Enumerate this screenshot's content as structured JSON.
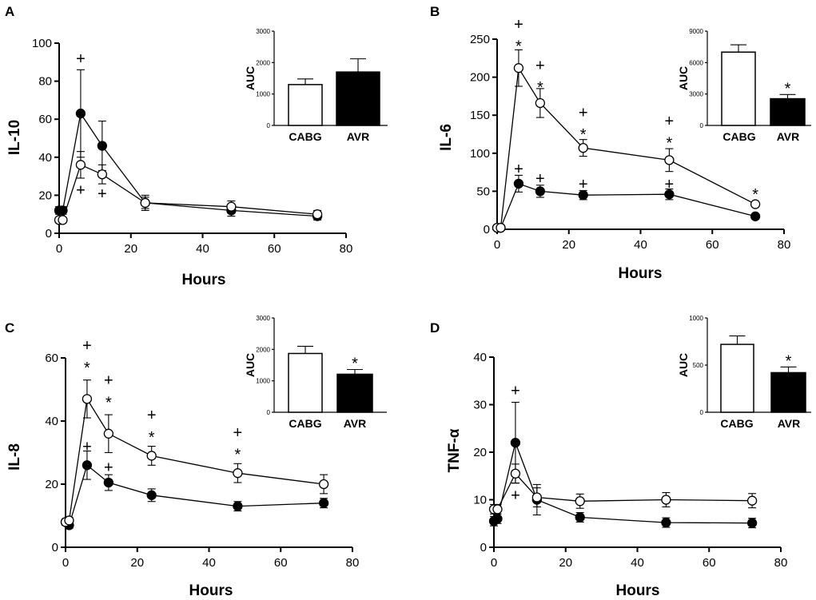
{
  "chart_data": [
    {
      "panel": "A",
      "type": "line",
      "xlabel": "Hours",
      "ylabel": "IL-10",
      "xlim": [
        0,
        80
      ],
      "ylim": [
        0,
        100
      ],
      "xticks": [
        0,
        20,
        40,
        60,
        80
      ],
      "yticks": [
        0,
        20,
        40,
        60,
        80,
        100
      ],
      "x": [
        0,
        1,
        6,
        12,
        24,
        48,
        72
      ],
      "series": [
        {
          "name": "CABG",
          "marker": "open",
          "values": [
            7,
            7,
            36,
            31,
            16,
            14,
            10
          ],
          "errors": [
            1,
            1,
            7,
            5,
            3,
            3,
            2
          ]
        },
        {
          "name": "AVR",
          "marker": "filled",
          "values": [
            12,
            12,
            63,
            46,
            16,
            12,
            9
          ],
          "errors": [
            2,
            2,
            23,
            13,
            4,
            3,
            2
          ]
        }
      ],
      "annotations": [
        {
          "x": 6,
          "y": 92,
          "text": "+"
        },
        {
          "x": 6,
          "y": 23,
          "text": "+"
        },
        {
          "x": 12,
          "y": 21,
          "text": "+"
        }
      ],
      "inset": {
        "ylabel": "AUC",
        "ylim": [
          0,
          3000
        ],
        "yticks": [
          0,
          1000,
          2000,
          3000
        ],
        "categories": [
          "CABG",
          "AVR"
        ],
        "values": [
          1300,
          1700
        ],
        "errors": [
          180,
          420
        ],
        "fills": [
          "#ffffff",
          "#000000"
        ],
        "stars": [
          "",
          ""
        ]
      }
    },
    {
      "panel": "B",
      "type": "line",
      "xlabel": "Hours",
      "ylabel": "IL-6",
      "xlim": [
        0,
        80
      ],
      "ylim": [
        0,
        250
      ],
      "xticks": [
        0,
        20,
        40,
        60,
        80
      ],
      "yticks": [
        0,
        50,
        100,
        150,
        200,
        250
      ],
      "x": [
        0,
        1,
        6,
        12,
        24,
        48,
        72
      ],
      "series": [
        {
          "name": "CABG",
          "marker": "open",
          "values": [
            2,
            2,
            212,
            166,
            107,
            91,
            33
          ],
          "errors": [
            1,
            1,
            24,
            19,
            11,
            15,
            3
          ]
        },
        {
          "name": "AVR",
          "marker": "filled",
          "values": [
            2,
            2,
            60,
            50,
            45,
            46,
            17
          ],
          "errors": [
            1,
            1,
            11,
            8,
            6,
            7,
            2
          ]
        }
      ],
      "annotations": [
        {
          "x": 6,
          "y": 270,
          "text": "+"
        },
        {
          "x": 6,
          "y": 241,
          "text": "*"
        },
        {
          "x": 12,
          "y": 216,
          "text": "+"
        },
        {
          "x": 12,
          "y": 187,
          "text": "*"
        },
        {
          "x": 24,
          "y": 154,
          "text": "+"
        },
        {
          "x": 24,
          "y": 125,
          "text": "*"
        },
        {
          "x": 48,
          "y": 143,
          "text": "+"
        },
        {
          "x": 48,
          "y": 114,
          "text": "*"
        },
        {
          "x": 72,
          "y": 46,
          "text": "*"
        },
        {
          "x": 6,
          "y": 80,
          "text": "+"
        },
        {
          "x": 12,
          "y": 67,
          "text": "+"
        },
        {
          "x": 24,
          "y": 60,
          "text": "+"
        },
        {
          "x": 48,
          "y": 60,
          "text": "+"
        }
      ],
      "inset": {
        "ylabel": "AUC",
        "ylim": [
          0,
          9000
        ],
        "yticks": [
          0,
          3000,
          6000,
          9000
        ],
        "categories": [
          "CABG",
          "AVR"
        ],
        "values": [
          7000,
          2550
        ],
        "errors": [
          700,
          400
        ],
        "fills": [
          "#ffffff",
          "#000000"
        ],
        "stars": [
          "",
          "*"
        ]
      }
    },
    {
      "panel": "C",
      "type": "line",
      "xlabel": "Hours",
      "ylabel": "IL-8",
      "xlim": [
        0,
        80
      ],
      "ylim": [
        0,
        60
      ],
      "xticks": [
        0,
        20,
        40,
        60,
        80
      ],
      "yticks": [
        0,
        20,
        40,
        60
      ],
      "x": [
        0,
        1,
        6,
        12,
        24,
        48,
        72
      ],
      "series": [
        {
          "name": "CABG",
          "marker": "open",
          "values": [
            8,
            8.5,
            47,
            36,
            29,
            23.5,
            20
          ],
          "errors": [
            1,
            1,
            6,
            6,
            3,
            3,
            3
          ]
        },
        {
          "name": "AVR",
          "marker": "filled",
          "values": [
            8,
            7,
            26,
            20.5,
            16.5,
            13,
            14
          ],
          "errors": [
            1,
            1,
            4.5,
            2.5,
            2,
            1.5,
            1.5
          ]
        }
      ],
      "annotations": [
        {
          "x": 6,
          "y": 64,
          "text": "+"
        },
        {
          "x": 6,
          "y": 57,
          "text": "*"
        },
        {
          "x": 12,
          "y": 53,
          "text": "+"
        },
        {
          "x": 12,
          "y": 46,
          "text": "*"
        },
        {
          "x": 24,
          "y": 42,
          "text": "+"
        },
        {
          "x": 24,
          "y": 35,
          "text": "*"
        },
        {
          "x": 48,
          "y": 36.5,
          "text": "+"
        },
        {
          "x": 48,
          "y": 29.5,
          "text": "*"
        },
        {
          "x": 6,
          "y": 32,
          "text": "+"
        },
        {
          "x": 12,
          "y": 25.5,
          "text": "+"
        }
      ],
      "inset": {
        "ylabel": "AUC",
        "ylim": [
          0,
          3000
        ],
        "yticks": [
          0,
          1000,
          2000,
          3000
        ],
        "categories": [
          "CABG",
          "AVR"
        ],
        "values": [
          1870,
          1210
        ],
        "errors": [
          230,
          150
        ],
        "fills": [
          "#ffffff",
          "#000000"
        ],
        "stars": [
          "",
          "*"
        ]
      }
    },
    {
      "panel": "D",
      "type": "line",
      "xlabel": "Hours",
      "ylabel": "TNF-α",
      "xlim": [
        0,
        80
      ],
      "ylim": [
        0,
        40
      ],
      "xticks": [
        0,
        20,
        40,
        60,
        80
      ],
      "yticks": [
        0,
        10,
        20,
        30,
        40
      ],
      "x": [
        0,
        1,
        6,
        12,
        24,
        48,
        72
      ],
      "series": [
        {
          "name": "CABG",
          "marker": "open",
          "values": [
            8,
            8,
            15.5,
            10.5,
            9.7,
            10,
            9.8
          ],
          "errors": [
            1,
            1,
            2,
            2,
            1.5,
            1.5,
            1.5
          ]
        },
        {
          "name": "AVR",
          "marker": "filled",
          "values": [
            5.5,
            6,
            22,
            10,
            6.3,
            5.2,
            5.1
          ],
          "errors": [
            1,
            1,
            8.5,
            3.2,
            1,
            1,
            1
          ]
        }
      ],
      "annotations": [
        {
          "x": 6,
          "y": 33,
          "text": "+"
        },
        {
          "x": 6,
          "y": 11,
          "text": "+"
        }
      ],
      "inset": {
        "ylabel": "AUC",
        "ylim": [
          0,
          1000
        ],
        "yticks": [
          0,
          500,
          1000
        ],
        "categories": [
          "CABG",
          "AVR"
        ],
        "values": [
          720,
          420
        ],
        "errors": [
          90,
          60
        ],
        "fills": [
          "#ffffff",
          "#000000"
        ],
        "stars": [
          "",
          "*"
        ]
      }
    }
  ]
}
